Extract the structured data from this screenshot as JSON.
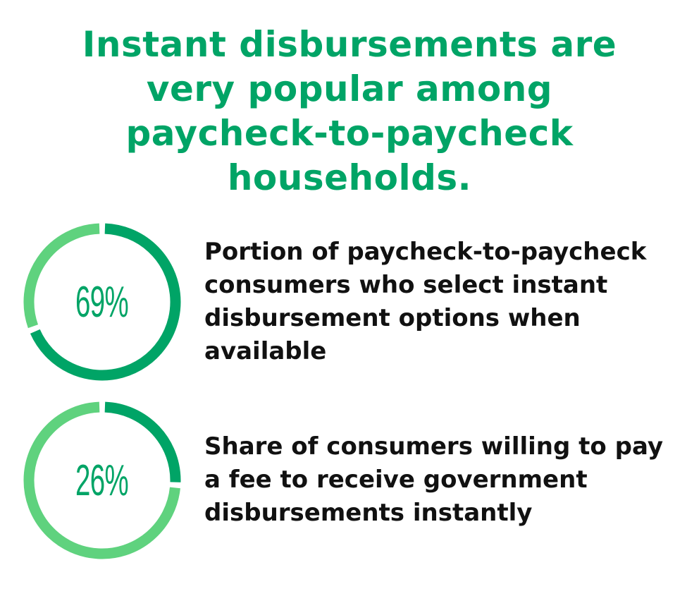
{
  "title_lines": [
    "Instant disbursements are",
    "very popular among",
    "paycheck-to-paycheck",
    "households."
  ],
  "colors": {
    "primary": "#00a466",
    "secondary": "#5fd27e",
    "text": "#111111"
  },
  "chart_data": [
    {
      "type": "pie",
      "style": "donut",
      "value_label": "69%",
      "values": [
        69,
        31
      ],
      "colors": [
        "#00a466",
        "#5fd27e"
      ],
      "description_lines": [
        "Portion of paycheck-to-paycheck",
        "consumers who select instant",
        "disbursement options when",
        "available"
      ]
    },
    {
      "type": "pie",
      "style": "donut",
      "value_label": "26%",
      "values": [
        26,
        74
      ],
      "colors": [
        "#00a466",
        "#5fd27e"
      ],
      "description_lines": [
        "Share of consumers willing to pay",
        "a fee to receive government",
        "disbursements instantly"
      ]
    }
  ]
}
